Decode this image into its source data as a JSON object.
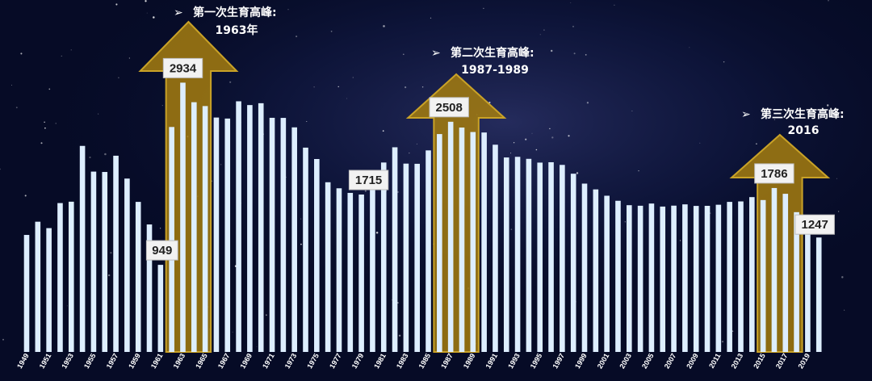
{
  "chart_data": {
    "type": "bar",
    "categories": [
      "1949",
      "1950",
      "1951",
      "1952",
      "1953",
      "1954",
      "1955",
      "1956",
      "1957",
      "1958",
      "1959",
      "1960",
      "1961",
      "1962",
      "1963",
      "1964",
      "1965",
      "1966",
      "1967",
      "1968",
      "1969",
      "1970",
      "1971",
      "1972",
      "1973",
      "1974",
      "1975",
      "1976",
      "1977",
      "1978",
      "1979",
      "1980",
      "1981",
      "1982",
      "1983",
      "1984",
      "1985",
      "1986",
      "1987",
      "1988",
      "1989",
      "1990",
      "1991",
      "1992",
      "1993",
      "1994",
      "1995",
      "1996",
      "1997",
      "1998",
      "1999",
      "2000",
      "2001",
      "2002",
      "2003",
      "2004",
      "2005",
      "2006",
      "2007",
      "2008",
      "2009",
      "2010",
      "2011",
      "2012",
      "2013",
      "2014",
      "2015",
      "2016",
      "2017",
      "2018",
      "2019",
      "2020"
    ],
    "values": [
      1275,
      1419,
      1349,
      1622,
      1637,
      2245,
      1965,
      1961,
      2138,
      1889,
      1635,
      1389,
      949,
      2451,
      2934,
      2721,
      2679,
      2554,
      2543,
      2731,
      2690,
      2710,
      2551,
      2550,
      2447,
      2226,
      2102,
      1849,
      1783,
      1733,
      1715,
      1776,
      2064,
      2230,
      2052,
      2050,
      2196,
      2374,
      2508,
      2445,
      2396,
      2391,
      2258,
      2119,
      2126,
      2104,
      2063,
      2067,
      2038,
      1942,
      1834,
      1771,
      1702,
      1647,
      1599,
      1593,
      1617,
      1584,
      1594,
      1608,
      1591,
      1592,
      1604,
      1635,
      1640,
      1687,
      1655,
      1786,
      1723,
      1523,
      1465,
      1247
    ],
    "ylim": [
      0,
      3300
    ],
    "x_tick_labels": [
      "1949",
      "1951",
      "1953",
      "1955",
      "1957",
      "1959",
      "1961",
      "1963",
      "1965",
      "1967",
      "1969",
      "1971",
      "1973",
      "1975",
      "1977",
      "1979",
      "1981",
      "1983",
      "1985",
      "1987",
      "1989",
      "1991",
      "1993",
      "1995",
      "1997",
      "1999",
      "2001",
      "2003",
      "2005",
      "2007",
      "2009",
      "2011",
      "2013",
      "2015",
      "2017",
      "2019"
    ],
    "data_labels": [
      {
        "x": "1961",
        "label": "949"
      },
      {
        "x": "1963",
        "label": "2934"
      },
      {
        "x": "1979",
        "label": "1715"
      },
      {
        "x": "1987",
        "label": "2508"
      },
      {
        "x": "2016",
        "label": "1786"
      },
      {
        "x": "2020",
        "label": "1247"
      }
    ],
    "annotations": [
      {
        "title": "第一次生育高峰:",
        "subtitle": "1963年",
        "from": "1962",
        "to": "1965"
      },
      {
        "title": "第二次生育高峰:",
        "subtitle": "1987-1989",
        "from": "1986",
        "to": "1989"
      },
      {
        "title": "第三次生育高峰:",
        "subtitle": "2016",
        "from": "2015",
        "to": "2018"
      }
    ],
    "colors": {
      "bar": "#ddeeff",
      "arrow_fill": "#a07a10",
      "arrow_stroke": "#c9a227",
      "background": "#060b26"
    },
    "bullet_glyph": "➢"
  }
}
